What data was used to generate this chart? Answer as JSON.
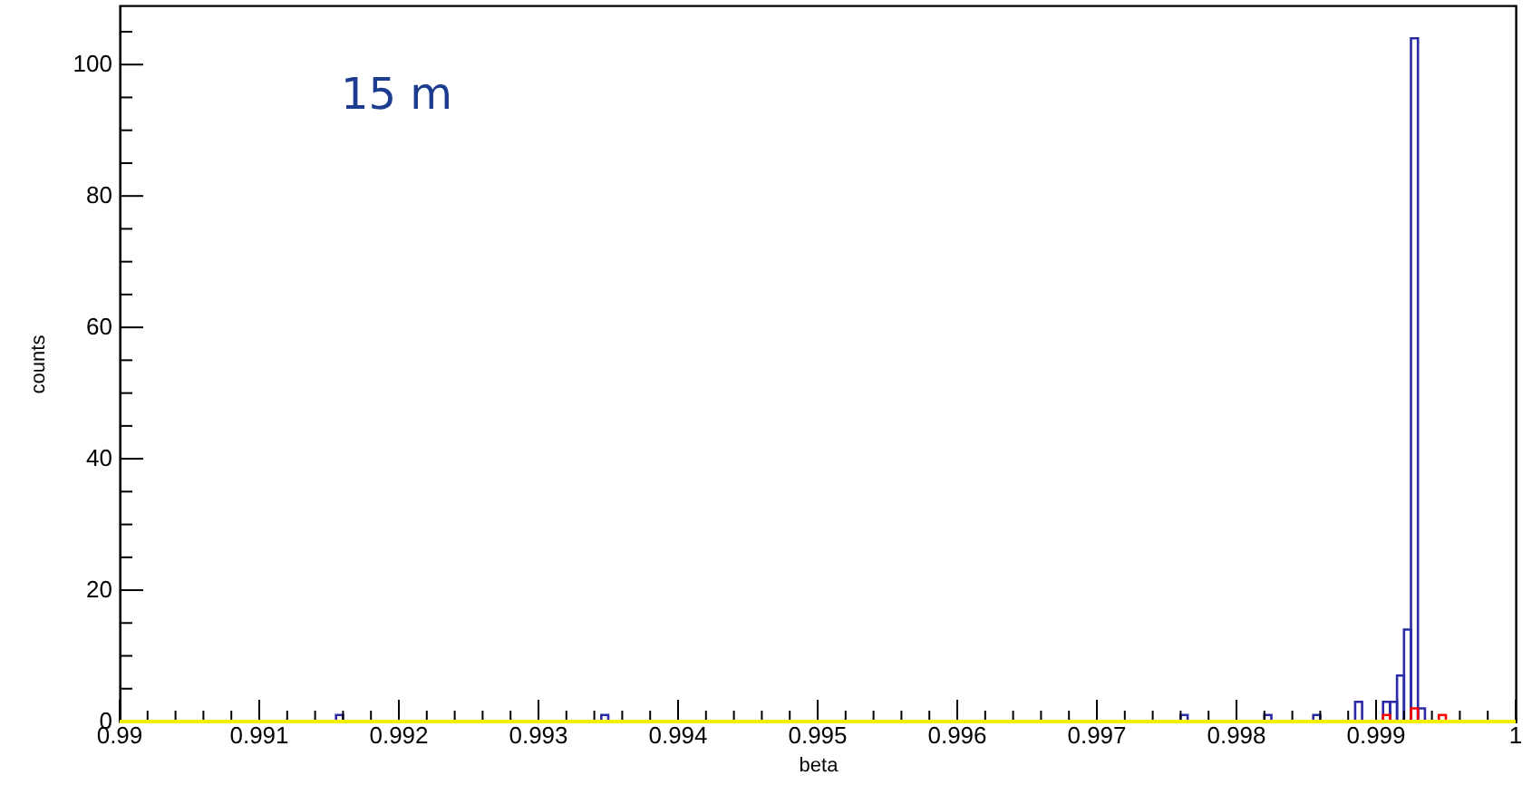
{
  "chart_data": {
    "type": "histogram",
    "xlabel": "beta",
    "ylabel": "counts",
    "annotations": [
      "15 m"
    ],
    "bins": [
      0.99,
      0.99155,
      0.9916,
      0.99345,
      0.9935,
      0.9976,
      0.99765,
      0.9982,
      0.99825,
      0.99855,
      0.9986,
      0.99885,
      0.9989,
      0.99905,
      0.9991,
      0.99915,
      0.9992,
      0.99925,
      0.9993,
      0.99935,
      0.9994,
      0.99945,
      0.9995,
      1.0
    ],
    "series": [
      {
        "color": "#2a2aa6",
        "values": [
          0,
          1,
          0,
          1,
          0,
          1,
          0,
          1,
          0,
          1,
          0,
          3,
          0,
          3,
          3,
          7,
          14,
          104,
          2,
          0,
          0,
          0,
          0
        ]
      },
      {
        "color": "#ff0000",
        "values": [
          0,
          0,
          0,
          0,
          0,
          0,
          0,
          0,
          0,
          0,
          0,
          0,
          0,
          1,
          0,
          0,
          0,
          2,
          0,
          0,
          0,
          1,
          0
        ]
      }
    ],
    "ref_lines": [
      {
        "axis": "y",
        "value": 0,
        "color": "#f0f000"
      }
    ],
    "xlim": [
      0.99,
      1.0
    ],
    "xticks": [
      0.99,
      {
        "value": 0.9902,
        "label": null
      },
      {
        "value": 0.9904,
        "label": null
      },
      {
        "value": 0.9906,
        "label": null
      },
      {
        "value": 0.9908,
        "label": null
      },
      0.991,
      {
        "value": 0.9912,
        "label": null
      },
      {
        "value": 0.9914,
        "label": null
      },
      {
        "value": 0.9916,
        "label": null
      },
      {
        "value": 0.9918,
        "label": null
      },
      0.992,
      {
        "value": 0.9922,
        "label": null
      },
      {
        "value": 0.9924,
        "label": null
      },
      {
        "value": 0.9926,
        "label": null
      },
      {
        "value": 0.9928,
        "label": null
      },
      0.993,
      {
        "value": 0.9932,
        "label": null
      },
      {
        "value": 0.9934,
        "label": null
      },
      {
        "value": 0.9936,
        "label": null
      },
      {
        "value": 0.9938,
        "label": null
      },
      0.994,
      {
        "value": 0.9942,
        "label": null
      },
      {
        "value": 0.9944,
        "label": null
      },
      {
        "value": 0.9946,
        "label": null
      },
      {
        "value": 0.9948,
        "label": null
      },
      0.995,
      {
        "value": 0.9952,
        "label": null
      },
      {
        "value": 0.9954,
        "label": null
      },
      {
        "value": 0.9956,
        "label": null
      },
      {
        "value": 0.9958,
        "label": null
      },
      0.996,
      {
        "value": 0.9962,
        "label": null
      },
      {
        "value": 0.9964,
        "label": null
      },
      {
        "value": 0.9966,
        "label": null
      },
      {
        "value": 0.9968,
        "label": null
      },
      0.997,
      {
        "value": 0.9972,
        "label": null
      },
      {
        "value": 0.9974,
        "label": null
      },
      {
        "value": 0.9976,
        "label": null
      },
      {
        "value": 0.9978,
        "label": null
      },
      0.998,
      {
        "value": 0.9982,
        "label": null
      },
      {
        "value": 0.9984,
        "label": null
      },
      {
        "value": 0.9986,
        "label": null
      },
      {
        "value": 0.9988,
        "label": null
      },
      0.999,
      {
        "value": 0.9992,
        "label": null
      },
      {
        "value": 0.9994,
        "label": null
      },
      {
        "value": 0.9996,
        "label": null
      },
      {
        "value": 0.9998,
        "label": null
      },
      1
    ],
    "ylim": [
      0,
      109
    ],
    "yticks": [
      0,
      {
        "value": 5,
        "label": null
      },
      {
        "value": 10,
        "label": null
      },
      {
        "value": 15,
        "label": null
      },
      20,
      {
        "value": 25,
        "label": null
      },
      {
        "value": 30,
        "label": null
      },
      {
        "value": 35,
        "label": null
      },
      40,
      {
        "value": 45,
        "label": null
      },
      {
        "value": 50,
        "label": null
      },
      {
        "value": 55,
        "label": null
      },
      60,
      {
        "value": 65,
        "label": null
      },
      {
        "value": 70,
        "label": null
      },
      {
        "value": 75,
        "label": null
      },
      80,
      {
        "value": 85,
        "label": null
      },
      {
        "value": 90,
        "label": null
      },
      {
        "value": 95,
        "label": null
      },
      100,
      {
        "value": 105,
        "label": null
      }
    ],
    "grid": false
  }
}
